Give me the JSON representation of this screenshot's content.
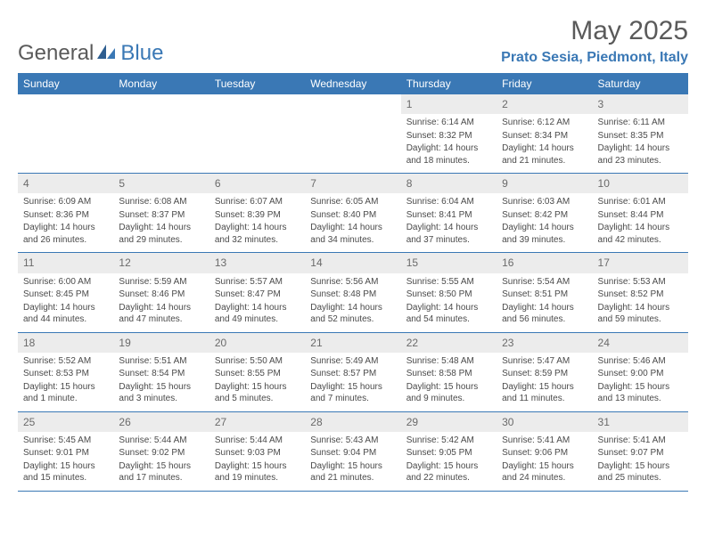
{
  "logo": {
    "text1": "General",
    "text2": "Blue"
  },
  "title": "May 2025",
  "location": "Prato Sesia, Piedmont, Italy",
  "colors": {
    "header_bg": "#3a78b5",
    "header_text": "#ffffff",
    "daynum_bg": "#ececec",
    "text": "#4a4a4a",
    "accent": "#3a78b5"
  },
  "day_headers": [
    "Sunday",
    "Monday",
    "Tuesday",
    "Wednesday",
    "Thursday",
    "Friday",
    "Saturday"
  ],
  "weeks": [
    [
      null,
      null,
      null,
      null,
      {
        "n": "1",
        "sr": "6:14 AM",
        "ss": "8:32 PM",
        "dl": "14 hours and 18 minutes."
      },
      {
        "n": "2",
        "sr": "6:12 AM",
        "ss": "8:34 PM",
        "dl": "14 hours and 21 minutes."
      },
      {
        "n": "3",
        "sr": "6:11 AM",
        "ss": "8:35 PM",
        "dl": "14 hours and 23 minutes."
      }
    ],
    [
      {
        "n": "4",
        "sr": "6:09 AM",
        "ss": "8:36 PM",
        "dl": "14 hours and 26 minutes."
      },
      {
        "n": "5",
        "sr": "6:08 AM",
        "ss": "8:37 PM",
        "dl": "14 hours and 29 minutes."
      },
      {
        "n": "6",
        "sr": "6:07 AM",
        "ss": "8:39 PM",
        "dl": "14 hours and 32 minutes."
      },
      {
        "n": "7",
        "sr": "6:05 AM",
        "ss": "8:40 PM",
        "dl": "14 hours and 34 minutes."
      },
      {
        "n": "8",
        "sr": "6:04 AM",
        "ss": "8:41 PM",
        "dl": "14 hours and 37 minutes."
      },
      {
        "n": "9",
        "sr": "6:03 AM",
        "ss": "8:42 PM",
        "dl": "14 hours and 39 minutes."
      },
      {
        "n": "10",
        "sr": "6:01 AM",
        "ss": "8:44 PM",
        "dl": "14 hours and 42 minutes."
      }
    ],
    [
      {
        "n": "11",
        "sr": "6:00 AM",
        "ss": "8:45 PM",
        "dl": "14 hours and 44 minutes."
      },
      {
        "n": "12",
        "sr": "5:59 AM",
        "ss": "8:46 PM",
        "dl": "14 hours and 47 minutes."
      },
      {
        "n": "13",
        "sr": "5:57 AM",
        "ss": "8:47 PM",
        "dl": "14 hours and 49 minutes."
      },
      {
        "n": "14",
        "sr": "5:56 AM",
        "ss": "8:48 PM",
        "dl": "14 hours and 52 minutes."
      },
      {
        "n": "15",
        "sr": "5:55 AM",
        "ss": "8:50 PM",
        "dl": "14 hours and 54 minutes."
      },
      {
        "n": "16",
        "sr": "5:54 AM",
        "ss": "8:51 PM",
        "dl": "14 hours and 56 minutes."
      },
      {
        "n": "17",
        "sr": "5:53 AM",
        "ss": "8:52 PM",
        "dl": "14 hours and 59 minutes."
      }
    ],
    [
      {
        "n": "18",
        "sr": "5:52 AM",
        "ss": "8:53 PM",
        "dl": "15 hours and 1 minute."
      },
      {
        "n": "19",
        "sr": "5:51 AM",
        "ss": "8:54 PM",
        "dl": "15 hours and 3 minutes."
      },
      {
        "n": "20",
        "sr": "5:50 AM",
        "ss": "8:55 PM",
        "dl": "15 hours and 5 minutes."
      },
      {
        "n": "21",
        "sr": "5:49 AM",
        "ss": "8:57 PM",
        "dl": "15 hours and 7 minutes."
      },
      {
        "n": "22",
        "sr": "5:48 AM",
        "ss": "8:58 PM",
        "dl": "15 hours and 9 minutes."
      },
      {
        "n": "23",
        "sr": "5:47 AM",
        "ss": "8:59 PM",
        "dl": "15 hours and 11 minutes."
      },
      {
        "n": "24",
        "sr": "5:46 AM",
        "ss": "9:00 PM",
        "dl": "15 hours and 13 minutes."
      }
    ],
    [
      {
        "n": "25",
        "sr": "5:45 AM",
        "ss": "9:01 PM",
        "dl": "15 hours and 15 minutes."
      },
      {
        "n": "26",
        "sr": "5:44 AM",
        "ss": "9:02 PM",
        "dl": "15 hours and 17 minutes."
      },
      {
        "n": "27",
        "sr": "5:44 AM",
        "ss": "9:03 PM",
        "dl": "15 hours and 19 minutes."
      },
      {
        "n": "28",
        "sr": "5:43 AM",
        "ss": "9:04 PM",
        "dl": "15 hours and 21 minutes."
      },
      {
        "n": "29",
        "sr": "5:42 AM",
        "ss": "9:05 PM",
        "dl": "15 hours and 22 minutes."
      },
      {
        "n": "30",
        "sr": "5:41 AM",
        "ss": "9:06 PM",
        "dl": "15 hours and 24 minutes."
      },
      {
        "n": "31",
        "sr": "5:41 AM",
        "ss": "9:07 PM",
        "dl": "15 hours and 25 minutes."
      }
    ]
  ],
  "labels": {
    "sunrise": "Sunrise: ",
    "sunset": "Sunset: ",
    "daylight": "Daylight: "
  }
}
